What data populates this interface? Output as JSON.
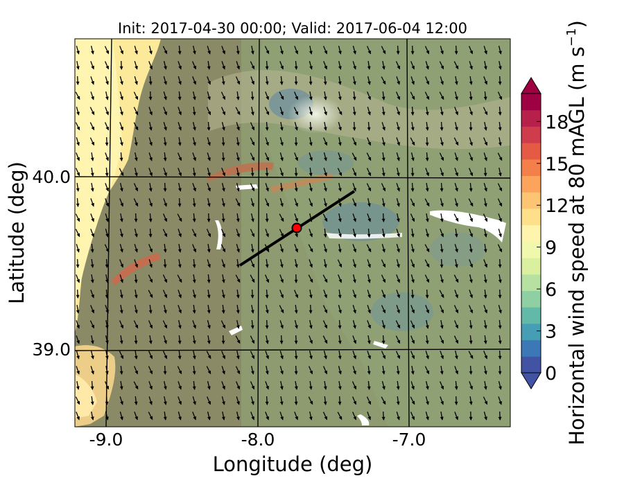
{
  "title": "Init: 2017-04-30 00:00; Valid: 2017-06-04 12:00",
  "xlabel": "Longitude (deg)",
  "ylabel": "Latitude (deg)",
  "x_ticks": [
    "-9.0",
    "-8.0",
    "-7.0"
  ],
  "y_ticks": [
    "40.0",
    "39.0"
  ],
  "colorbar": {
    "label": "Horizontal wind speed at 80 mAGL (m s",
    "label_sup": "−1",
    "label_end": ")",
    "ticks": [
      "0",
      "3",
      "6",
      "9",
      "12",
      "15",
      "18"
    ],
    "range": [
      0,
      20
    ],
    "extend": "both",
    "colors": [
      "#4353a3",
      "#3c78b6",
      "#469eb5",
      "#62b9a7",
      "#8fd0a3",
      "#b6e1a0",
      "#dbf09e",
      "#f0f8ad",
      "#fff4ab",
      "#fee08b",
      "#fdc473",
      "#fca35c",
      "#f57f4b",
      "#e55a45",
      "#cf3c4c",
      "#b6204b",
      "#9e0142"
    ]
  },
  "map": {
    "lon_range": [
      -9.25,
      -6.35
    ],
    "lat_range": [
      38.55,
      40.8
    ],
    "grid_lon": [
      -9.0,
      -8.0,
      -7.0
    ],
    "grid_lat": [
      40.0,
      39.0
    ],
    "wind_vectors": "dense field of black arrows pointing mostly south to south-southeast",
    "site": {
      "lon": -7.75,
      "lat": 39.68,
      "color": "#ff0000"
    },
    "transect": {
      "from": [
        -8.12,
        39.49
      ],
      "to": [
        -7.37,
        39.92
      ]
    }
  }
}
